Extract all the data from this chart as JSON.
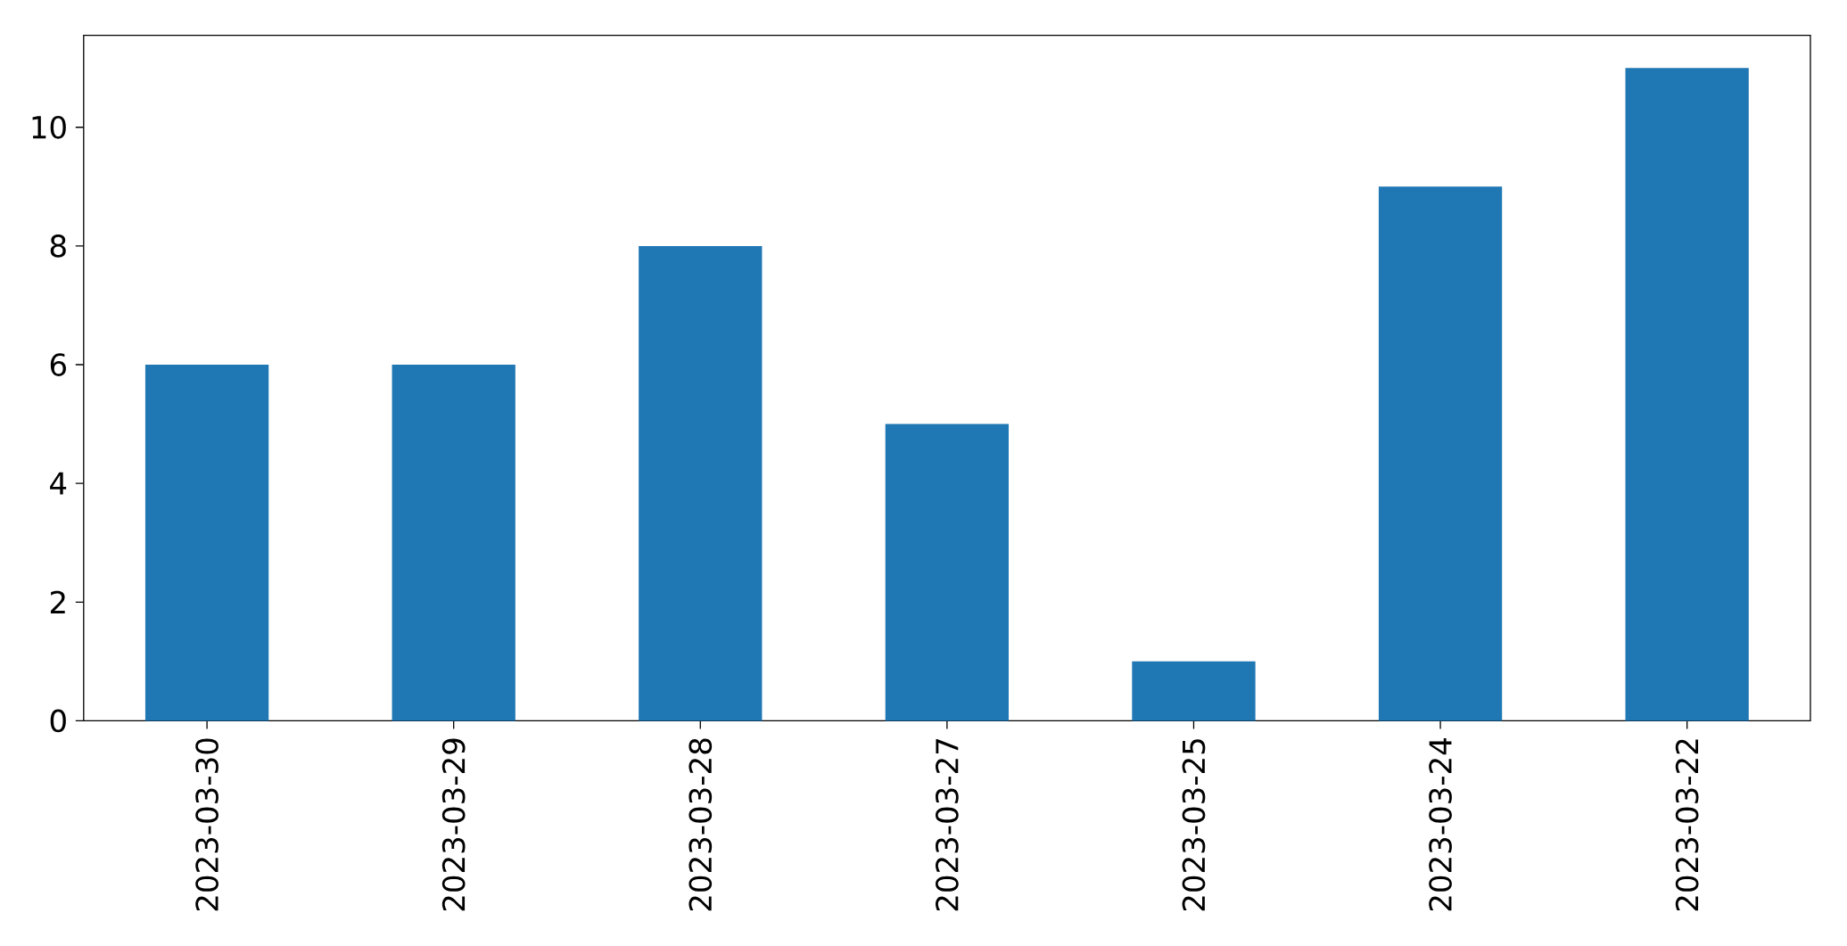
{
  "chart_data": {
    "type": "bar",
    "categories": [
      "2023-03-30",
      "2023-03-29",
      "2023-03-28",
      "2023-03-27",
      "2023-03-25",
      "2023-03-24",
      "2023-03-22"
    ],
    "values": [
      6,
      6,
      8,
      5,
      1,
      9,
      11
    ],
    "color": "#1f77b4",
    "ylim": [
      0,
      11.55
    ],
    "yticks": [
      0,
      2,
      4,
      6,
      8,
      10
    ]
  }
}
